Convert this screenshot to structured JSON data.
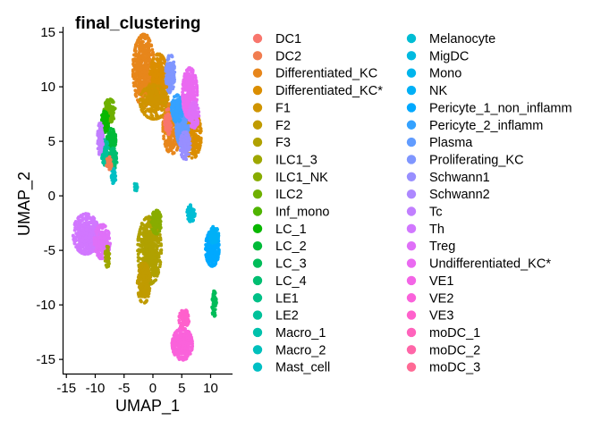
{
  "chart_data": {
    "type": "scatter",
    "title": "final_clustering",
    "xlabel": "UMAP_1",
    "ylabel": "UMAP_2",
    "xlim": [
      -15.5,
      13.8
    ],
    "ylim": [
      -16.3,
      15.5
    ],
    "xticks": [
      "-15",
      "-10",
      "-5",
      "0",
      "5",
      "10"
    ],
    "yticks": [
      "15",
      "10",
      "5",
      "0",
      "-5",
      "-10",
      "-15"
    ],
    "grid": false,
    "legend_position": "right",
    "legend": [
      {
        "name": "DC1",
        "color": "#F8766D"
      },
      {
        "name": "DC2",
        "color": "#F17D50"
      },
      {
        "name": "Differentiated_KC",
        "color": "#E7861B"
      },
      {
        "name": "Differentiated_KC*",
        "color": "#DB8E00"
      },
      {
        "name": "F1",
        "color": "#CF9400"
      },
      {
        "name": "F2",
        "color": "#C09B00"
      },
      {
        "name": "F3",
        "color": "#B0A100"
      },
      {
        "name": "ILC1_3",
        "color": "#9EA700"
      },
      {
        "name": "ILC1_NK",
        "color": "#88AC00"
      },
      {
        "name": "ILC2",
        "color": "#6FB000"
      },
      {
        "name": "Inf_mono",
        "color": "#4FB400"
      },
      {
        "name": "LC_1",
        "color": "#09B700"
      },
      {
        "name": "LC_2",
        "color": "#00BA38"
      },
      {
        "name": "LC_3",
        "color": "#00BC59"
      },
      {
        "name": "LC_4",
        "color": "#00BE71"
      },
      {
        "name": "LE1",
        "color": "#00C087"
      },
      {
        "name": "LE2",
        "color": "#00C19A"
      },
      {
        "name": "Macro_1",
        "color": "#00C1AC"
      },
      {
        "name": "Macro_2",
        "color": "#00C0BC"
      },
      {
        "name": "Mast_cell",
        "color": "#00BFC4"
      },
      {
        "name": "Melanocyte",
        "color": "#00BDD4"
      },
      {
        "name": "MigDC",
        "color": "#00BAE0"
      },
      {
        "name": "Mono",
        "color": "#00B5EC"
      },
      {
        "name": "NK",
        "color": "#00B0F6"
      },
      {
        "name": "Pericyte_1_non_inflamm",
        "color": "#00A9FF"
      },
      {
        "name": "Pericyte_2_inflamm",
        "color": "#35A2FF"
      },
      {
        "name": "Plasma",
        "color": "#619CFF"
      },
      {
        "name": "Proliferating_KC",
        "color": "#7F96FF"
      },
      {
        "name": "Schwann1",
        "color": "#988FFF"
      },
      {
        "name": "Schwann2",
        "color": "#AD88FF"
      },
      {
        "name": "Tc",
        "color": "#C17FFF"
      },
      {
        "name": "Th",
        "color": "#D177FF"
      },
      {
        "name": "Treg",
        "color": "#DF70F8"
      },
      {
        "name": "Undifferentiated_KC*",
        "color": "#EA6AF1"
      },
      {
        "name": "VE1",
        "color": "#F365E6"
      },
      {
        "name": "VE2",
        "color": "#FA62DB"
      },
      {
        "name": "VE3",
        "color": "#FF61CC"
      },
      {
        "name": "moDC_1",
        "color": "#FF63BC"
      },
      {
        "name": "moDC_2",
        "color": "#FF66A8"
      },
      {
        "name": "moDC_3",
        "color": "#FF6A95"
      }
    ],
    "clusters": [
      {
        "color": "#E7861B",
        "cx": -1.6,
        "cy": 11.5,
        "rx": 1.9,
        "ry": 3.4,
        "n": 520
      },
      {
        "color": "#DB8E00",
        "cx": 1.0,
        "cy": 10.5,
        "rx": 1.6,
        "ry": 2.6,
        "n": 380
      },
      {
        "color": "#CF9400",
        "cx": 0.2,
        "cy": 8.6,
        "rx": 2.5,
        "ry": 1.6,
        "n": 260
      },
      {
        "color": "#E7861B",
        "cx": 3.3,
        "cy": 6.2,
        "rx": 1.6,
        "ry": 2.4,
        "n": 260
      },
      {
        "color": "#DB8E00",
        "cx": 6.9,
        "cy": 5.6,
        "rx": 1.5,
        "ry": 2.2,
        "n": 240
      },
      {
        "color": "#7F96FF",
        "cx": 3.0,
        "cy": 11.2,
        "rx": 0.8,
        "ry": 1.8,
        "n": 160
      },
      {
        "color": "#619CFF",
        "cx": 5.1,
        "cy": 6.3,
        "rx": 1.1,
        "ry": 1.8,
        "n": 280
      },
      {
        "color": "#35A2FF",
        "cx": 4.2,
        "cy": 8.0,
        "rx": 1.0,
        "ry": 1.3,
        "n": 140
      },
      {
        "color": "#988FFF",
        "cx": 5.6,
        "cy": 4.6,
        "rx": 0.9,
        "ry": 1.3,
        "n": 110
      },
      {
        "color": "#EA6AF1",
        "cx": 6.4,
        "cy": 9.4,
        "rx": 1.3,
        "ry": 2.4,
        "n": 360
      },
      {
        "color": "#DF70F8",
        "cx": 7.1,
        "cy": 7.4,
        "rx": 0.9,
        "ry": 1.2,
        "n": 100
      },
      {
        "color": "#F8766D",
        "cx": 2.6,
        "cy": 6.8,
        "rx": 0.6,
        "ry": 1.2,
        "n": 60
      },
      {
        "color": "#6FB000",
        "cx": -7.5,
        "cy": 7.8,
        "rx": 1.0,
        "ry": 1.1,
        "n": 140
      },
      {
        "color": "#09B700",
        "cx": -8.3,
        "cy": 6.8,
        "rx": 0.7,
        "ry": 1.0,
        "n": 110
      },
      {
        "color": "#00BA38",
        "cx": -7.2,
        "cy": 5.2,
        "rx": 0.8,
        "ry": 1.0,
        "n": 120
      },
      {
        "color": "#00C19A",
        "cx": -8.3,
        "cy": 4.0,
        "rx": 0.6,
        "ry": 1.2,
        "n": 100
      },
      {
        "color": "#00BE71",
        "cx": -6.9,
        "cy": 3.4,
        "rx": 0.7,
        "ry": 1.0,
        "n": 100
      },
      {
        "color": "#C17FFF",
        "cx": -9.1,
        "cy": 5.2,
        "rx": 0.5,
        "ry": 1.6,
        "n": 90
      },
      {
        "color": "#00BFC4",
        "cx": -6.8,
        "cy": 1.8,
        "rx": 0.4,
        "ry": 0.7,
        "n": 50
      },
      {
        "color": "#F17D50",
        "cx": -7.6,
        "cy": 3.0,
        "rx": 0.5,
        "ry": 0.6,
        "n": 40
      },
      {
        "color": "#00C0BC",
        "cx": -3.0,
        "cy": 0.8,
        "rx": 0.3,
        "ry": 0.4,
        "n": 20
      },
      {
        "color": "#D177FF",
        "cx": -11.6,
        "cy": -3.5,
        "rx": 2.3,
        "ry": 1.9,
        "n": 520
      },
      {
        "color": "#DF70F8",
        "cx": -8.8,
        "cy": -4.2,
        "rx": 1.4,
        "ry": 1.6,
        "n": 200
      },
      {
        "color": "#9EA700",
        "cx": -7.9,
        "cy": -5.6,
        "rx": 0.4,
        "ry": 1.0,
        "n": 60
      },
      {
        "color": "#B0A100",
        "cx": -0.6,
        "cy": -5.0,
        "rx": 2.1,
        "ry": 3.2,
        "n": 520
      },
      {
        "color": "#C09B00",
        "cx": -1.6,
        "cy": -8.0,
        "rx": 1.1,
        "ry": 1.9,
        "n": 200
      },
      {
        "color": "#88AC00",
        "cx": 0.6,
        "cy": -2.4,
        "rx": 0.9,
        "ry": 1.1,
        "n": 110
      },
      {
        "color": "#00BDD4",
        "cx": 6.6,
        "cy": -1.6,
        "rx": 0.7,
        "ry": 0.8,
        "n": 90
      },
      {
        "color": "#00A9FF",
        "cx": 10.3,
        "cy": -4.8,
        "rx": 1.2,
        "ry": 1.7,
        "n": 320
      },
      {
        "color": "#00B0F6",
        "cx": 10.6,
        "cy": -3.6,
        "rx": 0.8,
        "ry": 0.8,
        "n": 80
      },
      {
        "color": "#00BC59",
        "cx": 10.6,
        "cy": -9.9,
        "rx": 0.4,
        "ry": 1.2,
        "n": 70
      },
      {
        "color": "#FA62DB",
        "cx": 5.1,
        "cy": -13.6,
        "rx": 1.8,
        "ry": 1.5,
        "n": 300
      },
      {
        "color": "#FF61CC",
        "cx": 5.4,
        "cy": -11.3,
        "rx": 0.9,
        "ry": 0.9,
        "n": 100
      }
    ]
  }
}
